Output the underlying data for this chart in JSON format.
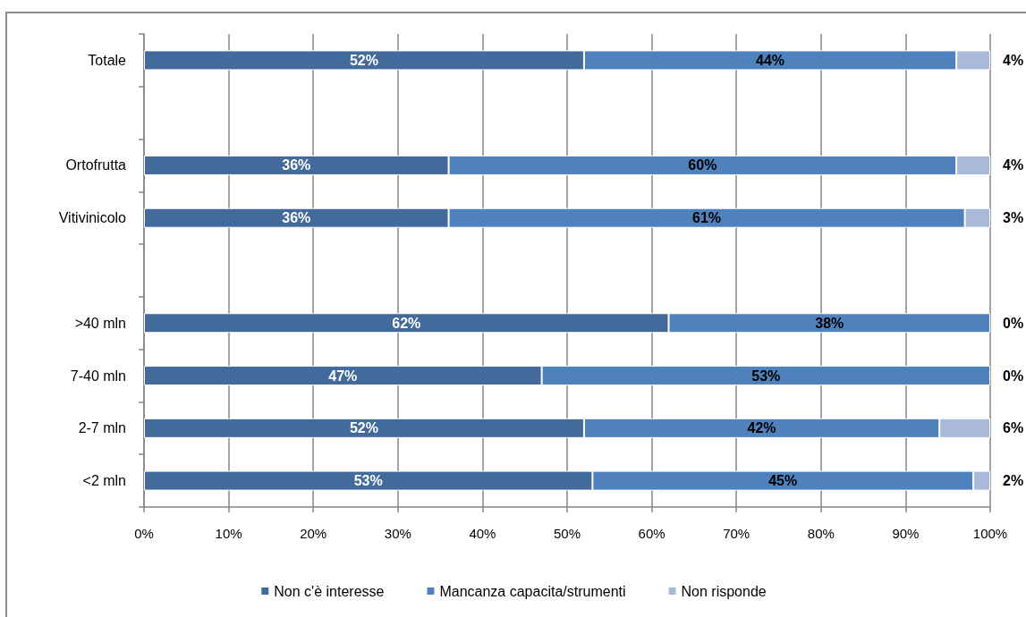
{
  "chart_data": {
    "type": "bar",
    "orientation": "horizontal",
    "stacked": true,
    "categories": [
      "Totale",
      null,
      "Ortofrutta",
      "Vitivinicolo",
      null,
      ">40 mln",
      "7-40 mln",
      "2-7 mln",
      "<2 mln"
    ],
    "series": [
      {
        "name": "Non c'è interesse",
        "color": "#426a9b",
        "values": [
          52,
          null,
          36,
          36,
          null,
          62,
          47,
          52,
          53
        ],
        "value_labels": [
          "52%",
          null,
          "36%",
          "36%",
          null,
          "62%",
          "47%",
          "52%",
          "53%"
        ]
      },
      {
        "name": "Mancanza capacita/strumenti",
        "color": "#4f81bd",
        "values": [
          44,
          null,
          60,
          61,
          null,
          38,
          53,
          42,
          45
        ],
        "value_labels": [
          "44%",
          null,
          "60%",
          "61%",
          null,
          "38%",
          "53%",
          "42%",
          "45%"
        ]
      },
      {
        "name": "Non risponde",
        "color": "#a9b9d9",
        "values": [
          4,
          null,
          4,
          3,
          null,
          0,
          0,
          6,
          2
        ],
        "value_labels": [
          "4%",
          null,
          "4%",
          "3%",
          null,
          "0%",
          "0%",
          "6%",
          "2%"
        ]
      }
    ],
    "xlim": [
      0,
      100
    ],
    "xticks": [
      {
        "value": 0,
        "label": "0%"
      },
      {
        "value": 10,
        "label": "10%"
      },
      {
        "value": 20,
        "label": "20%"
      },
      {
        "value": 30,
        "label": "30%"
      },
      {
        "value": 40,
        "label": "40%"
      },
      {
        "value": 50,
        "label": "50%"
      },
      {
        "value": 60,
        "label": "60%"
      },
      {
        "value": 70,
        "label": "70%"
      },
      {
        "value": 80,
        "label": "80%"
      },
      {
        "value": 90,
        "label": "90%"
      },
      {
        "value": 100,
        "label": "100%"
      }
    ],
    "grid": "x",
    "legend": "bottom"
  }
}
